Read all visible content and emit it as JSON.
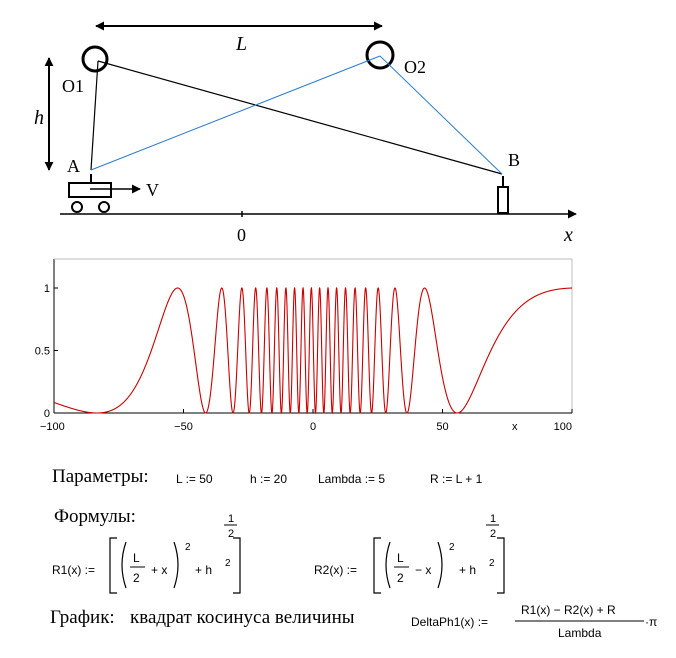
{
  "diagram": {
    "label_L": "L",
    "label_h": "h",
    "label_O1": "O1",
    "label_O2": "O2",
    "label_A": "A",
    "label_B": "B",
    "label_V": "V",
    "axis_zero": "0",
    "axis_x": "x"
  },
  "chart_data": {
    "type": "line",
    "title": "",
    "xlabel": "x",
    "ylabel": "",
    "xlim": [
      -100,
      100
    ],
    "ylim": [
      0,
      1
    ],
    "x_ticks": [
      "−100",
      "−50",
      "0",
      "50",
      "100"
    ],
    "y_ticks": [
      "0",
      "0.5",
      "1"
    ],
    "grid": false,
    "line_color": "#cc0000",
    "function": "cos^2(DeltaPh1(x)), DeltaPh1 = (R1(x) - R2(x) + R)/Lambda*pi, R1 = ((L/2+x)^2+h^2)^(1/2), R2 = ((L/2-x)^2+h^2)^(1/2)",
    "params": {
      "L": 50,
      "h": 20,
      "Lambda": 5,
      "R": 51
    }
  },
  "formulas": {
    "params_title": "Параметры:",
    "p_L": "L := 50",
    "p_h": "h := 20",
    "p_lambda": "Lambda := 5",
    "p_R": "R := L + 1",
    "formulas_title": "Формулы:",
    "r1_name": "R1(x) :=",
    "r2_name": "R2(x) :=",
    "frac_L": "L",
    "frac_2": "2",
    "plus_x": "+ x",
    "minus_x": "− x",
    "sq": "2",
    "plus_h": "+ h",
    "half_num": "1",
    "half_den": "2",
    "graph_title": "График:",
    "graph_desc": "квадрат косинуса величины",
    "dph_name": "DeltaPh1(x) :=",
    "dph_num": "R1(x) − R2(x) + R",
    "dph_den": "Lambda",
    "dph_pi": "·π"
  }
}
